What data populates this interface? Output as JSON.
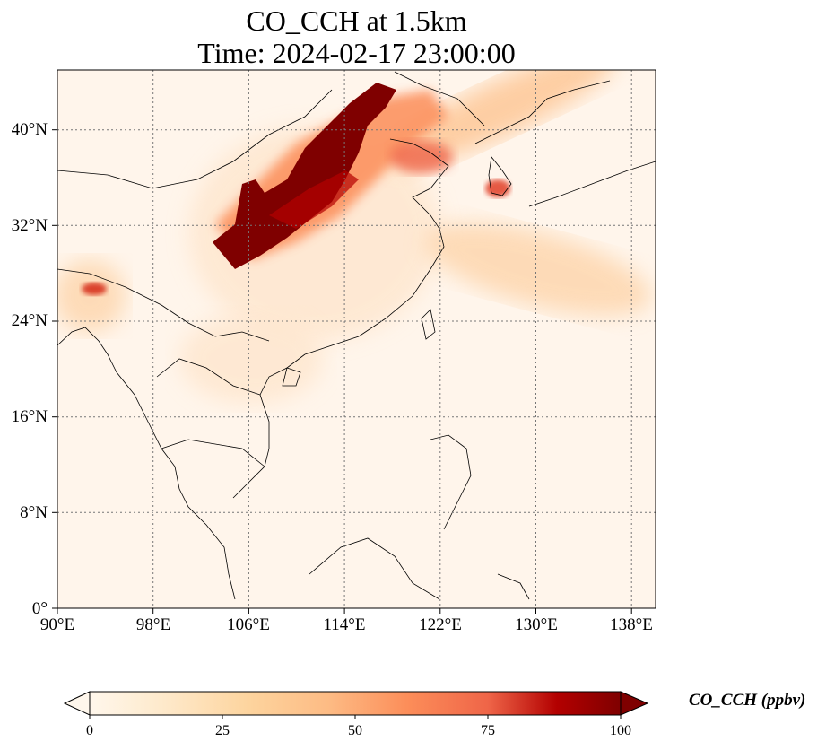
{
  "title": {
    "line1": "CO_CCH at 1.5km",
    "line2": "Time: 2024-02-17 23:00:00"
  },
  "map": {
    "lon_range": [
      90,
      140
    ],
    "lat_range": [
      0,
      45
    ],
    "x_ticks": [
      "90°E",
      "98°E",
      "106°E",
      "114°E",
      "122°E",
      "130°E",
      "138°E"
    ],
    "y_ticks": [
      "0°",
      "8°N",
      "16°N",
      "24°N",
      "32°N",
      "40°N"
    ],
    "gridlines": "dotted",
    "plume_description_colors": {
      "low": "#fff5eb",
      "mid": "#fd8d3c",
      "high": "#7f0000"
    }
  },
  "colorbar": {
    "label": "CO_CCH (ppbv)",
    "ticks": [
      "0",
      "25",
      "50",
      "75",
      "100"
    ],
    "range": [
      0,
      100
    ],
    "colormap": "OrRd",
    "extend": "both"
  }
}
